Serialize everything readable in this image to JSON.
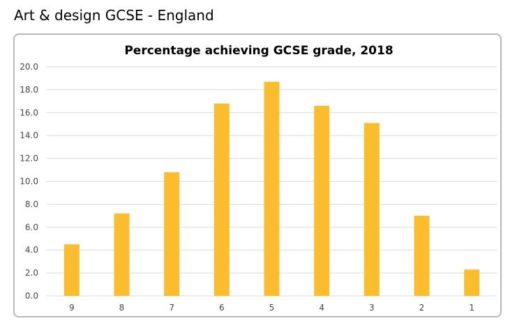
{
  "page": {
    "heading": "Art & design GCSE - England"
  },
  "chart_data": {
    "type": "bar",
    "title": "Percentage achieving GCSE grade, 2018",
    "xlabel": "",
    "ylabel": "",
    "categories": [
      "9",
      "8",
      "7",
      "6",
      "5",
      "4",
      "3",
      "2",
      "1"
    ],
    "values": [
      4.5,
      7.2,
      10.8,
      16.8,
      18.7,
      16.6,
      15.1,
      7.0,
      2.3
    ],
    "ylim": [
      0,
      20
    ],
    "yticks": [
      "0.0",
      "2.0",
      "4.0",
      "6.0",
      "8.0",
      "10.0",
      "12.0",
      "14.0",
      "16.0",
      "18.0",
      "20.0"
    ],
    "grid": true,
    "legend": "none",
    "bar_color": "#fbbd2e",
    "grid_color": "#d9d9d9"
  }
}
